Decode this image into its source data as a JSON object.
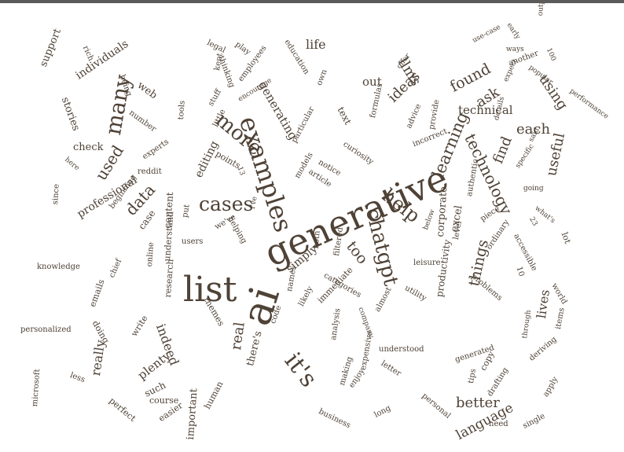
{
  "colors": {
    "word": "#4f4236",
    "top_bar": "#5b5b5b",
    "background": "#ffffff"
  },
  "words": [
    "generative",
    "ai",
    "list",
    "examples",
    "chatgpt",
    "it's",
    "help",
    "cases",
    "many",
    "more",
    "found",
    "learning",
    "technology",
    "used",
    "data",
    "using",
    "ask",
    "things",
    "too",
    "find",
    "each",
    "ideas",
    "useful",
    "llms",
    "real",
    "better",
    "language",
    "indeed",
    "really",
    "plenty",
    "lives",
    "life",
    "out",
    "technical",
    "professional",
    "generating",
    "stories",
    "web",
    "individuals",
    "support",
    "check",
    "editing",
    "simply",
    "content",
    "excel",
    "corporate",
    "text",
    "productivity",
    "case",
    "understand",
    "research",
    "lot",
    "there's",
    "important",
    "emails",
    "knowledge",
    "personalized",
    "microsoft",
    "such",
    "perfect",
    "course",
    "easier",
    "human",
    "doing",
    "write",
    "themes",
    "code",
    "likely",
    "names",
    "immediate",
    "categories",
    "filtered",
    "both",
    "understood",
    "letter",
    "making",
    "enjoy",
    "expensive",
    "analysis",
    "generated",
    "copy",
    "drafting",
    "apply",
    "single",
    "need",
    "tips",
    "personal",
    "long",
    "business",
    "deriving",
    "through",
    "items",
    "world",
    "problems",
    "accessible",
    "ordinary",
    "piece",
    "authentic",
    "level",
    "leisure",
    "utility",
    "almost",
    "curiosity",
    "incorrect",
    "advice",
    "provide",
    "formulas",
    "education",
    "own",
    "legal",
    "play",
    "thinking",
    "kept",
    "employees",
    "encourage",
    "rich",
    "being",
    "number",
    "stuff",
    "little",
    "points",
    "tools",
    "experts",
    "here",
    "reddit",
    "since",
    "beginning",
    "put",
    "users",
    "online",
    "chief",
    "helping",
    "we've",
    "i've",
    "particular",
    "notice",
    "article",
    "models",
    "use-case",
    "early",
    "ways",
    "outputs",
    "another",
    "popular",
    "performance",
    "expect",
    "details",
    "said",
    "specific",
    "going",
    "what's",
    "offer",
    "below",
    "less",
    "company",
    "23",
    "10",
    "13",
    "100"
  ]
}
